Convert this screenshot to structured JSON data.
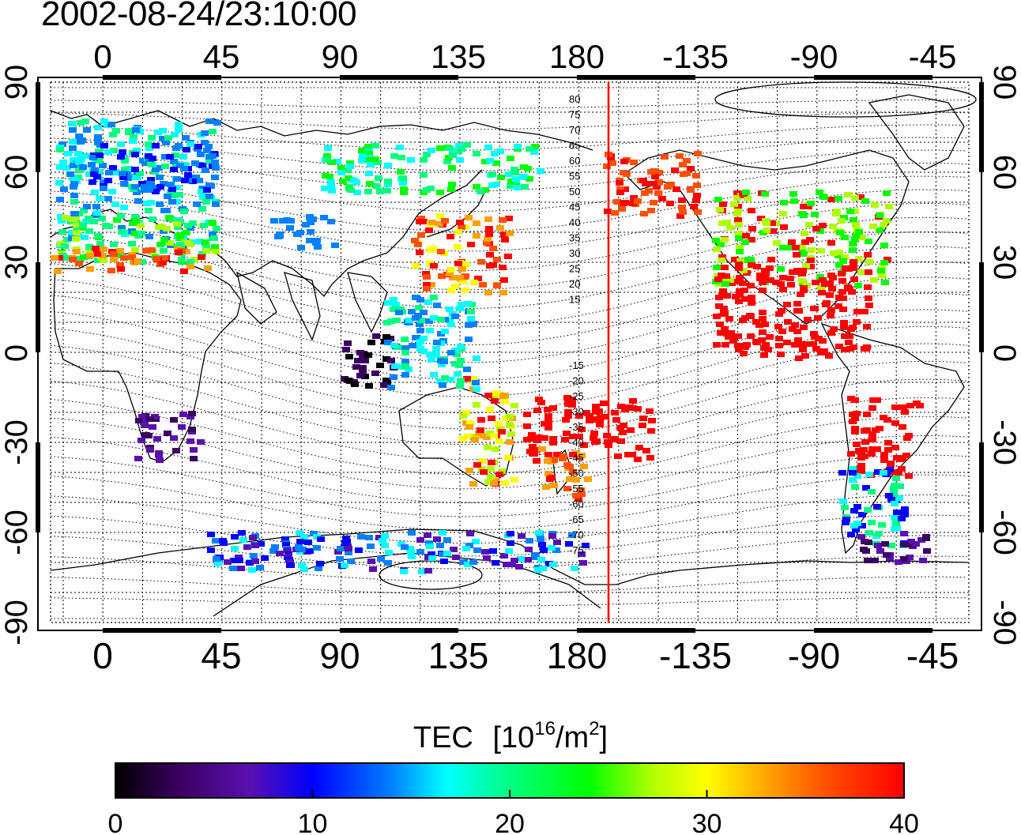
{
  "title": "2002-08-24/23:10:00",
  "map": {
    "top_lon_labels": [
      "0",
      "45",
      "90",
      "135",
      "180",
      "-135",
      "-90",
      "-45"
    ],
    "bottom_lon_labels": [
      "0",
      "45",
      "90",
      "135",
      "180",
      "-135",
      "-90",
      "-45"
    ],
    "left_lat_labels": [
      "90",
      "60",
      "30",
      "0",
      "-30",
      "-60",
      "-90"
    ],
    "right_lat_labels": [
      "90",
      "60",
      "30",
      "0",
      "-30",
      "-60",
      "-90"
    ],
    "magnetic_lat_labels_north": [
      "80",
      "75",
      "70",
      "65",
      "60",
      "55",
      "50",
      "45",
      "40",
      "35",
      "30",
      "25",
      "20",
      "15"
    ],
    "magnetic_lat_labels_south": [
      "-15",
      "-20",
      "-25",
      "-30",
      "-35",
      "-40",
      "-45",
      "-50",
      "-55",
      "-60",
      "-65",
      "-70",
      "-75"
    ],
    "terminator_color": "#ff0000"
  },
  "colorbar": {
    "label": "TEC",
    "unit_base": "[10",
    "unit_exp": "16",
    "unit_mid": "/m",
    "unit_exp2": "2",
    "unit_end": "]",
    "ticks": [
      "0",
      "10",
      "20",
      "30",
      "40"
    ],
    "range": [
      0,
      40
    ],
    "colors": [
      "#000000",
      "#3a0060",
      "#5a10b0",
      "#0000ff",
      "#0080ff",
      "#00ffff",
      "#00ff80",
      "#00ff00",
      "#b0ff00",
      "#ffff00",
      "#ffa000",
      "#ff5000",
      "#ff0000"
    ]
  }
}
